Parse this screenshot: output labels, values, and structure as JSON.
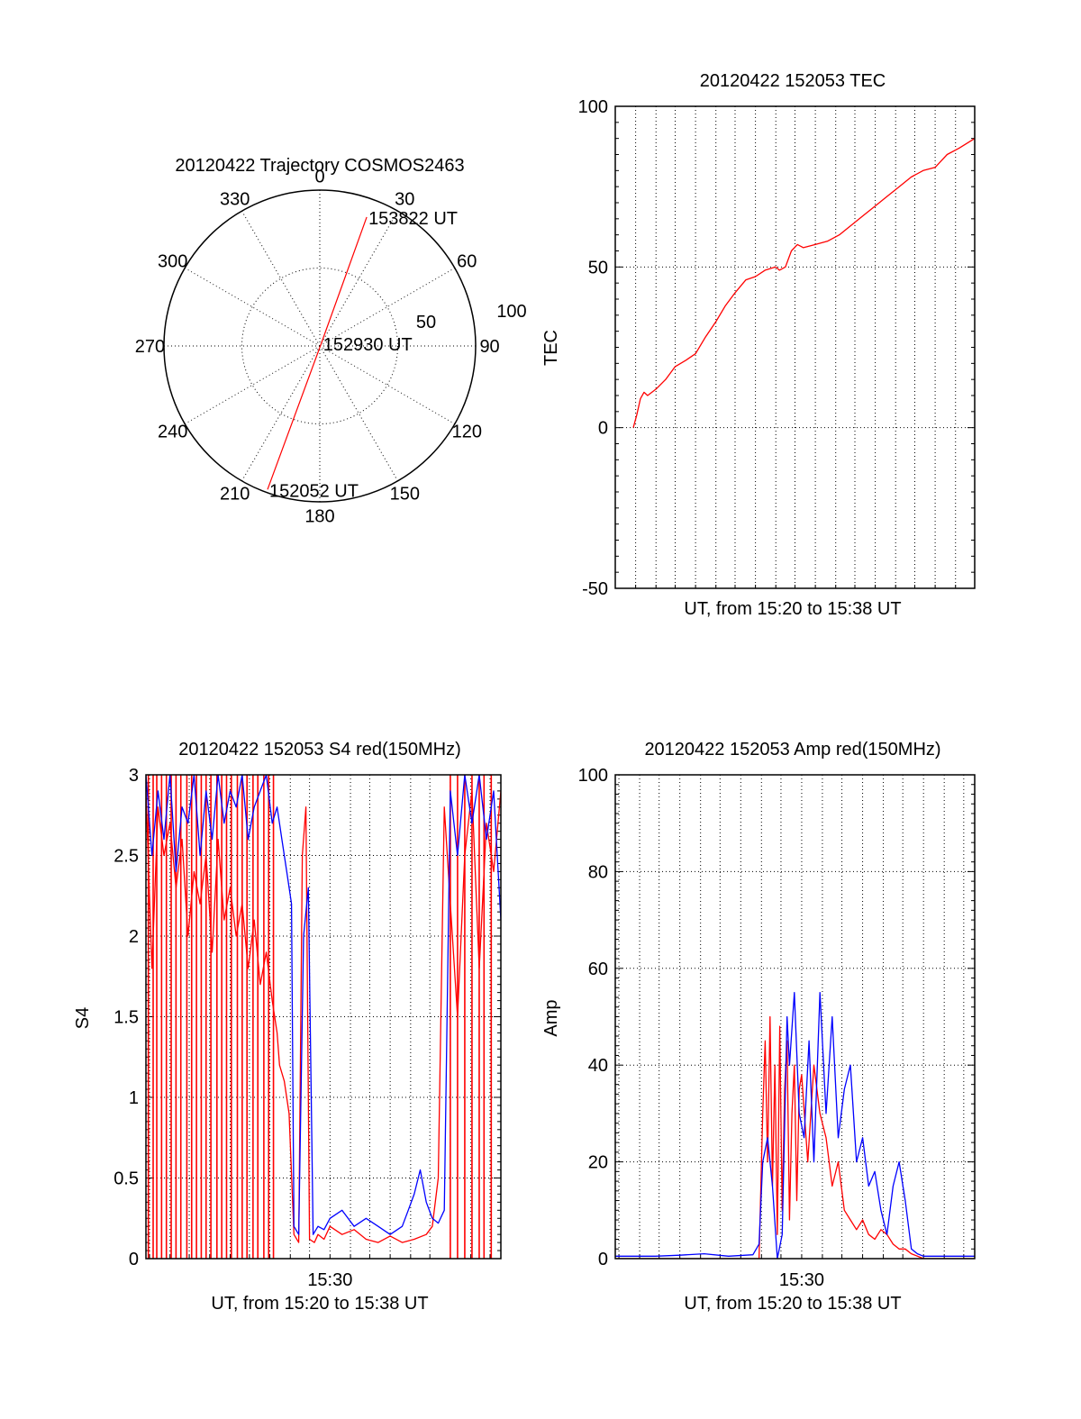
{
  "chart_data": [
    {
      "type": "polar",
      "title": "20120422 Trajectory COSMOS2463",
      "angle_labels": [
        "0",
        "30",
        "60",
        "90",
        "120",
        "150",
        "180",
        "210",
        "240",
        "270",
        "300",
        "330"
      ],
      "radial_labels": [
        "50",
        "100"
      ],
      "rmax": 100,
      "trajectory": {
        "points": [
          [
            200,
            98
          ],
          [
            30,
            2
          ],
          [
            20,
            88
          ]
        ],
        "color": "#ff0000"
      },
      "annotations": [
        {
          "text": "153822 UT",
          "angle": 20,
          "r": 88
        },
        {
          "text": "152930 UT",
          "angle": 30,
          "r": 2
        },
        {
          "text": "152052 UT",
          "angle": 200,
          "r": 98
        }
      ]
    },
    {
      "type": "line",
      "title": "20120422 152053 TEC",
      "xlabel": "UT, from 15:20 to 15:38 UT",
      "ylabel": "TEC",
      "ylim": [
        -50,
        100
      ],
      "yticks": [
        "-50",
        "0",
        "50",
        "100"
      ],
      "xlim": [
        15.333,
        15.633
      ],
      "vgrid_x": [
        15.333,
        15.35,
        15.367,
        15.383,
        15.4,
        15.417,
        15.433,
        15.45,
        15.467,
        15.483,
        15.5,
        15.517,
        15.533,
        15.55,
        15.567,
        15.583,
        15.6,
        15.617,
        15.633
      ],
      "series": [
        {
          "color": "#ff0000",
          "x": [
            15.348,
            15.351,
            15.354,
            15.357,
            15.36,
            15.367,
            15.375,
            15.383,
            15.392,
            15.4,
            15.408,
            15.417,
            15.425,
            15.433,
            15.442,
            15.45,
            15.458,
            15.467,
            15.47,
            15.475,
            15.48,
            15.485,
            15.49,
            15.5,
            15.51,
            15.52,
            15.53,
            15.54,
            15.55,
            15.56,
            15.57,
            15.58,
            15.59,
            15.6,
            15.605,
            15.61,
            15.62,
            15.633
          ],
          "y": [
            0,
            4,
            9,
            11,
            10,
            12,
            15,
            19,
            21,
            23,
            28,
            33,
            38,
            42,
            46,
            47,
            49,
            50,
            49,
            50,
            55,
            57,
            56,
            57,
            58,
            60,
            63,
            66,
            69,
            72,
            75,
            78,
            80,
            81,
            83,
            85,
            87,
            90
          ]
        }
      ]
    },
    {
      "type": "line",
      "title": "20120422 152053 S4 red(150MHz)",
      "xlabel": "UT, from 15:20 to 15:38 UT",
      "ylabel": "S4",
      "ylim": [
        0,
        3
      ],
      "yticks": [
        "0",
        "0.5",
        "1",
        "1.5",
        "2",
        "2.5",
        "3"
      ],
      "xticks": [
        {
          "x": 15.5,
          "label": "15:30"
        }
      ],
      "xlim": [
        15.347,
        15.642
      ],
      "vgrid_x": [
        15.35,
        15.367,
        15.383,
        15.4,
        15.417,
        15.433,
        15.45,
        15.467,
        15.483,
        15.5,
        15.517,
        15.533,
        15.55,
        15.567,
        15.583,
        15.6,
        15.617,
        15.633
      ],
      "series": [
        {
          "color": "#ff0000",
          "x": [
            15.347,
            15.352,
            15.357,
            15.362,
            15.367,
            15.372,
            15.377,
            15.382,
            15.387,
            15.392,
            15.397,
            15.402,
            15.407,
            15.412,
            15.417,
            15.422,
            15.427,
            15.432,
            15.437,
            15.442,
            15.447,
            15.452,
            15.456,
            15.458,
            15.462,
            15.466,
            15.47,
            15.474,
            15.477,
            15.48,
            15.483,
            15.487,
            15.49,
            15.495,
            15.5,
            15.51,
            15.52,
            15.53,
            15.54,
            15.55,
            15.56,
            15.57,
            15.58,
            15.585,
            15.59,
            15.595,
            15.6,
            15.606,
            15.612,
            15.618,
            15.624,
            15.63,
            15.636,
            15.642
          ],
          "y": [
            2.9,
            1.8,
            2.8,
            2.5,
            2.7,
            2.3,
            2.6,
            2.0,
            2.4,
            2.2,
            2.5,
            1.9,
            2.6,
            2.1,
            2.3,
            2.0,
            2.2,
            1.8,
            2.1,
            1.7,
            1.9,
            1.6,
            1.4,
            1.2,
            1.1,
            0.9,
            0.15,
            0.1,
            2.5,
            2.8,
            0.12,
            0.1,
            0.15,
            0.12,
            0.2,
            0.15,
            0.18,
            0.12,
            0.1,
            0.14,
            0.1,
            0.12,
            0.15,
            0.2,
            0.5,
            2.8,
            2.2,
            1.5,
            2.5,
            2.9,
            1.8,
            2.7,
            2.4,
            2.9
          ],
          "dropouts_x": [
            15.349,
            15.353,
            15.356,
            15.36,
            15.364,
            15.368,
            15.372,
            15.376,
            15.381,
            15.385,
            15.389,
            15.393,
            15.397,
            15.401,
            15.406,
            15.41,
            15.414,
            15.418,
            15.423,
            15.427,
            15.431,
            15.436,
            15.44,
            15.445,
            15.449,
            15.453,
            15.6,
            15.606,
            15.612,
            15.618,
            15.624,
            15.628,
            15.634
          ]
        },
        {
          "color": "#0000ff",
          "x": [
            15.347,
            15.352,
            15.357,
            15.362,
            15.367,
            15.372,
            15.377,
            15.382,
            15.387,
            15.392,
            15.397,
            15.402,
            15.407,
            15.412,
            15.417,
            15.422,
            15.427,
            15.432,
            15.437,
            15.442,
            15.447,
            15.452,
            15.456,
            15.46,
            15.464,
            15.468,
            15.47,
            15.474,
            15.478,
            15.482,
            15.486,
            15.49,
            15.495,
            15.5,
            15.51,
            15.52,
            15.53,
            15.54,
            15.55,
            15.56,
            15.565,
            15.57,
            15.575,
            15.58,
            15.585,
            15.59,
            15.595,
            15.6,
            15.606,
            15.612,
            15.618,
            15.624,
            15.63,
            15.636,
            15.642
          ],
          "y": [
            3.0,
            2.5,
            2.9,
            2.6,
            3.0,
            2.4,
            2.8,
            2.7,
            3.0,
            2.5,
            2.9,
            2.6,
            3.0,
            2.7,
            2.9,
            2.8,
            3.0,
            2.6,
            2.8,
            2.9,
            3.0,
            2.7,
            2.8,
            2.6,
            2.4,
            2.2,
            0.2,
            0.15,
            2.0,
            2.3,
            0.15,
            0.2,
            0.18,
            0.25,
            0.3,
            0.2,
            0.25,
            0.2,
            0.15,
            0.2,
            0.3,
            0.4,
            0.55,
            0.35,
            0.25,
            0.22,
            0.3,
            2.9,
            2.5,
            3.0,
            2.7,
            3.0,
            2.6,
            2.9,
            2.1
          ]
        }
      ]
    },
    {
      "type": "line",
      "title": "20120422 152053 Amp red(150MHz)",
      "xlabel": "UT, from 15:20 to 15:38 UT",
      "ylabel": "Amp",
      "ylim": [
        0,
        100
      ],
      "yticks": [
        "0",
        "20",
        "40",
        "60",
        "80",
        "100"
      ],
      "xticks": [
        {
          "x": 15.5,
          "label": "15:30"
        }
      ],
      "xlim": [
        15.347,
        15.642
      ],
      "vgrid_x": [
        15.35,
        15.367,
        15.383,
        15.4,
        15.417,
        15.433,
        15.45,
        15.467,
        15.483,
        15.5,
        15.517,
        15.533,
        15.55,
        15.567,
        15.583,
        15.6,
        15.617,
        15.633
      ],
      "series": [
        {
          "color": "#ff0000",
          "x": [
            15.347,
            15.4,
            15.45,
            15.465,
            15.468,
            15.47,
            15.472,
            15.474,
            15.476,
            15.478,
            15.48,
            15.482,
            15.484,
            15.486,
            15.488,
            15.49,
            15.492,
            15.494,
            15.496,
            15.498,
            15.5,
            15.505,
            15.51,
            15.515,
            15.52,
            15.525,
            15.53,
            15.535,
            15.54,
            15.545,
            15.55,
            15.555,
            15.56,
            15.565,
            15.57,
            15.575,
            15.58,
            15.585,
            15.59,
            15.6,
            15.642
          ],
          "y": [
            0,
            0,
            0,
            0,
            30,
            45,
            20,
            50,
            15,
            40,
            5,
            48,
            10,
            35,
            45,
            8,
            30,
            40,
            12,
            35,
            38,
            20,
            40,
            30,
            25,
            15,
            20,
            10,
            8,
            6,
            8,
            5,
            4,
            6,
            5,
            3,
            2,
            2,
            1,
            0,
            0
          ]
        },
        {
          "color": "#0000ff",
          "x": [
            15.347,
            15.36,
            15.38,
            15.4,
            15.42,
            15.44,
            15.46,
            15.465,
            15.468,
            15.472,
            15.476,
            15.48,
            15.484,
            15.488,
            15.49,
            15.494,
            15.498,
            15.502,
            15.506,
            15.51,
            15.515,
            15.52,
            15.525,
            15.53,
            15.535,
            15.54,
            15.545,
            15.55,
            15.555,
            15.56,
            15.565,
            15.57,
            15.575,
            15.58,
            15.585,
            15.59,
            15.595,
            15.6,
            15.62,
            15.642
          ],
          "y": [
            0.5,
            0.5,
            0.5,
            0.7,
            1,
            0.5,
            0.8,
            3,
            20,
            25,
            15,
            0,
            5,
            50,
            40,
            55,
            30,
            25,
            45,
            20,
            55,
            30,
            50,
            25,
            35,
            40,
            20,
            25,
            15,
            18,
            10,
            5,
            15,
            20,
            12,
            2,
            1,
            0.5,
            0.5,
            0.5
          ]
        }
      ]
    }
  ]
}
